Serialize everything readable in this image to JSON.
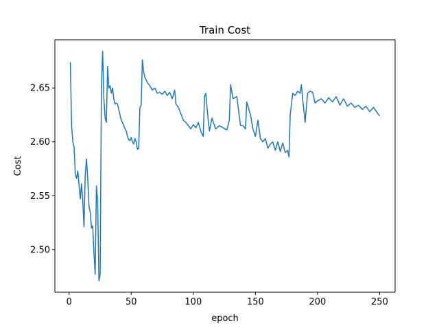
{
  "chart_data": {
    "type": "line",
    "title": "Train Cost",
    "x_label": "epoch",
    "y_label": "Cost",
    "x": [
      1,
      2,
      3,
      4,
      5,
      6,
      7,
      8,
      9,
      10,
      11,
      12,
      13,
      14,
      15,
      16,
      17,
      18,
      19,
      20,
      21,
      22,
      23,
      24,
      25,
      26,
      27,
      28,
      29,
      30,
      31,
      32,
      33,
      34,
      35,
      36,
      37,
      38,
      39,
      40,
      41,
      42,
      43,
      44,
      45,
      46,
      47,
      48,
      49,
      50,
      51,
      52,
      53,
      54,
      55,
      56,
      57,
      58,
      59,
      60,
      61,
      63,
      65,
      67,
      69,
      71,
      73,
      75,
      77,
      79,
      81,
      83,
      85,
      86,
      88,
      90,
      92,
      94,
      96,
      98,
      100,
      102,
      104,
      106,
      108,
      109,
      110,
      112,
      113,
      115,
      118,
      121,
      124,
      127,
      129,
      130,
      132,
      135,
      138,
      140,
      142,
      143,
      146,
      148,
      150,
      152,
      154,
      156,
      158,
      160,
      162,
      164,
      166,
      168,
      170,
      172,
      174,
      176,
      177,
      178,
      180,
      182,
      184,
      186,
      187,
      188,
      190,
      192,
      194,
      196,
      198,
      200,
      203,
      206,
      209,
      212,
      215,
      218,
      221,
      224,
      227,
      230,
      233,
      236,
      239,
      242,
      245,
      248,
      250
    ],
    "series": [
      {
        "name": "Train Cost",
        "color": "#1f77b4",
        "values": [
          2.674,
          2.615,
          2.6,
          2.595,
          2.57,
          2.566,
          2.573,
          2.56,
          2.547,
          2.561,
          2.545,
          2.521,
          2.57,
          2.584,
          2.566,
          2.54,
          2.535,
          2.52,
          2.522,
          2.497,
          2.477,
          2.559,
          2.545,
          2.471,
          2.477,
          2.65,
          2.684,
          2.64,
          2.622,
          2.618,
          2.67,
          2.65,
          2.652,
          2.645,
          2.65,
          2.64,
          2.635,
          2.636,
          2.635,
          2.63,
          2.625,
          2.62,
          2.618,
          2.615,
          2.612,
          2.61,
          2.605,
          2.602,
          2.601,
          2.604,
          2.6,
          2.598,
          2.603,
          2.6,
          2.593,
          2.594,
          2.632,
          2.634,
          2.676,
          2.665,
          2.66,
          2.655,
          2.652,
          2.648,
          2.65,
          2.645,
          2.646,
          2.644,
          2.647,
          2.643,
          2.646,
          2.64,
          2.648,
          2.635,
          2.632,
          2.626,
          2.62,
          2.618,
          2.615,
          2.612,
          2.616,
          2.613,
          2.618,
          2.61,
          2.605,
          2.642,
          2.645,
          2.62,
          2.61,
          2.622,
          2.612,
          2.615,
          2.613,
          2.611,
          2.62,
          2.653,
          2.64,
          2.642,
          2.615,
          2.615,
          2.612,
          2.637,
          2.625,
          2.612,
          2.605,
          2.62,
          2.603,
          2.6,
          2.603,
          2.594,
          2.598,
          2.6,
          2.592,
          2.6,
          2.591,
          2.599,
          2.59,
          2.592,
          2.586,
          2.625,
          2.645,
          2.643,
          2.647,
          2.645,
          2.653,
          2.64,
          2.618,
          2.645,
          2.647,
          2.646,
          2.636,
          2.638,
          2.64,
          2.636,
          2.641,
          2.637,
          2.642,
          2.634,
          2.64,
          2.633,
          2.636,
          2.632,
          2.634,
          2.63,
          2.633,
          2.628,
          2.632,
          2.627,
          2.624
        ]
      }
    ],
    "xlim": [
      -11.45,
      262.45
    ],
    "ylim": [
      2.4604,
      2.6947
    ],
    "xticks": [
      0,
      50,
      100,
      150,
      200,
      250
    ],
    "yticks": [
      {
        "value": 2.5,
        "label": "2.50"
      },
      {
        "value": 2.55,
        "label": "2.55"
      },
      {
        "value": 2.6,
        "label": "2.60"
      },
      {
        "value": 2.65,
        "label": "2.65"
      }
    ]
  }
}
